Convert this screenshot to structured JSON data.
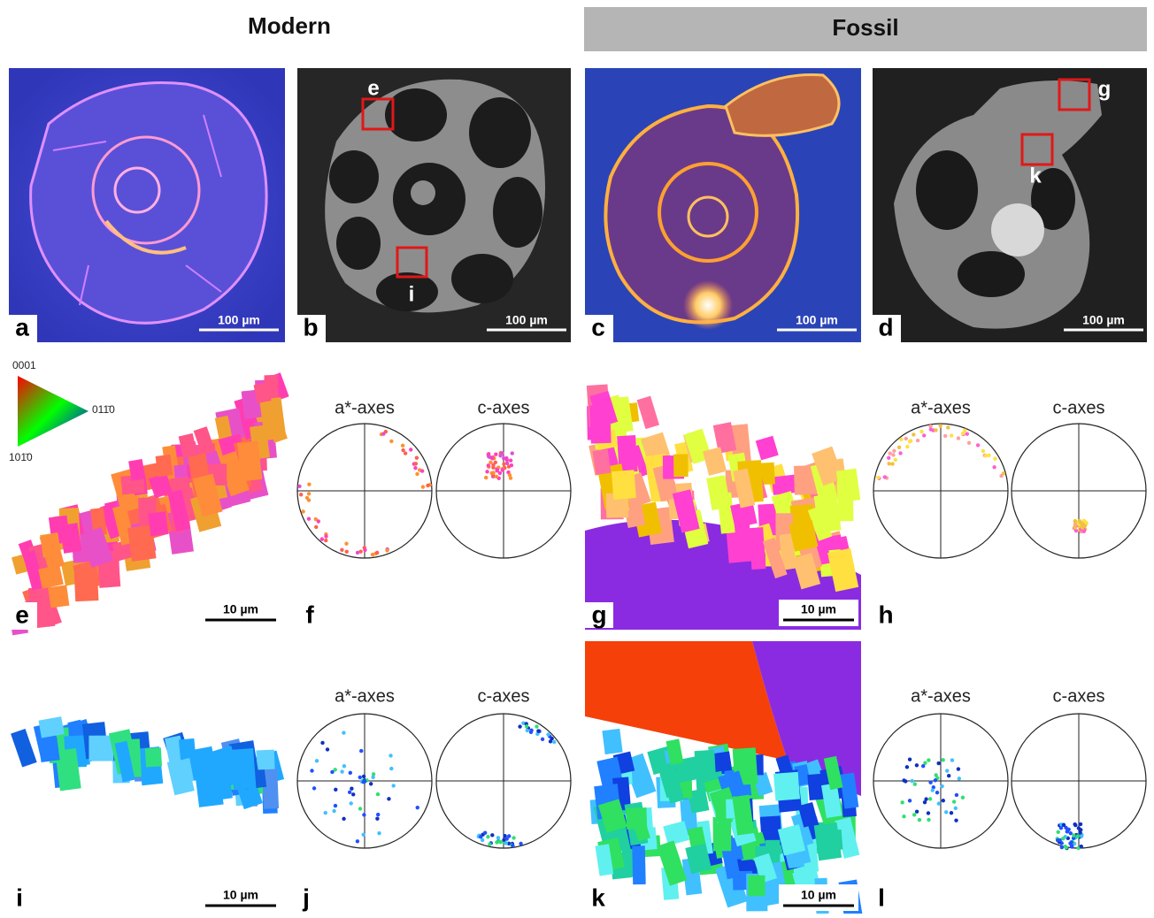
{
  "headers": {
    "modern": "Modern",
    "fossil": "Fossil"
  },
  "panels": {
    "a": {
      "label": "a",
      "scale_bar": "100 µm"
    },
    "b": {
      "label": "b",
      "scale_bar": "100 µm",
      "markers": [
        "e",
        "i"
      ]
    },
    "c": {
      "label": "c",
      "scale_bar": "100 µm"
    },
    "d": {
      "label": "d",
      "scale_bar": "100 µm",
      "markers": [
        "g",
        "k"
      ]
    },
    "e": {
      "label": "e",
      "scale_bar": "10 µm",
      "color_key": [
        "0001",
        "011̄0",
        "101̄0"
      ]
    },
    "f": {
      "label": "f",
      "pole_figures": [
        "a*-axes",
        "c-axes"
      ]
    },
    "g": {
      "label": "g",
      "scale_bar": "10 µm"
    },
    "h": {
      "label": "h",
      "pole_figures": [
        "a*-axes",
        "c-axes"
      ]
    },
    "i": {
      "label": "i",
      "scale_bar": "10 µm"
    },
    "j": {
      "label": "j",
      "pole_figures": [
        "a*-axes",
        "c-axes"
      ]
    },
    "k": {
      "label": "k",
      "scale_bar": "10 µm"
    },
    "l": {
      "label": "l",
      "pole_figures": [
        "a*-axes",
        "c-axes"
      ]
    }
  }
}
